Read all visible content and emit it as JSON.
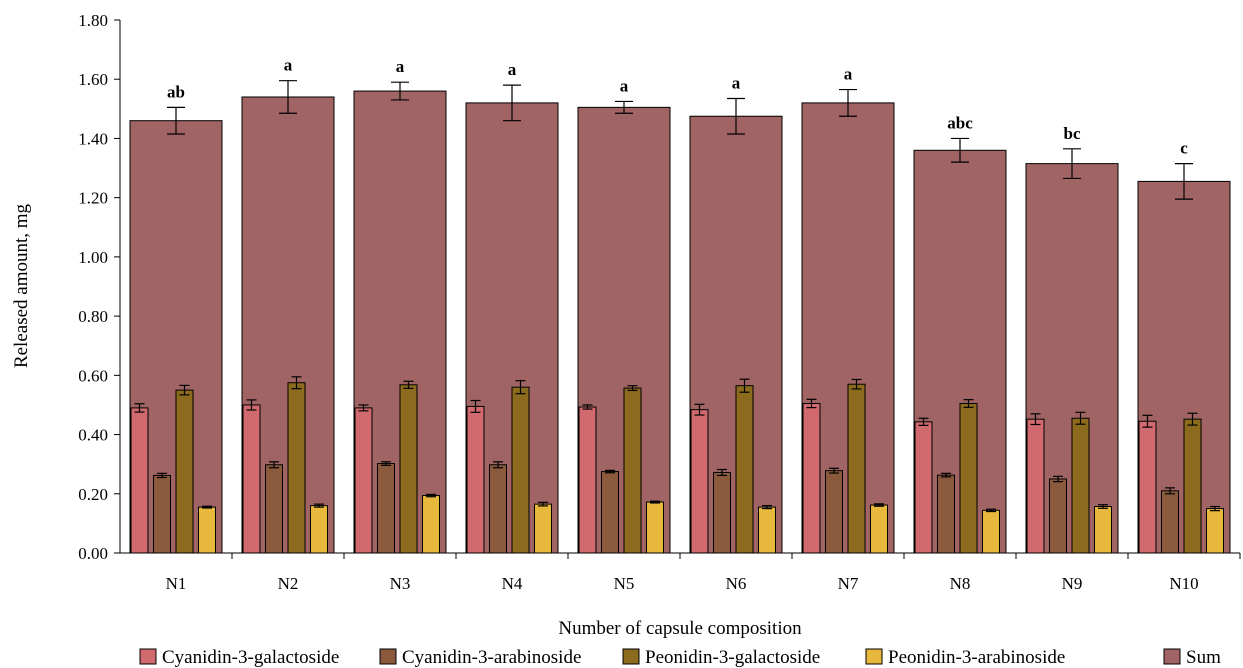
{
  "chart_data": {
    "type": "bar",
    "title": "",
    "xlabel": "Number of capsule composition",
    "ylabel": "Released amount, mg",
    "ylim": [
      0,
      1.8
    ],
    "yticks": [
      "0.00",
      "0.20",
      "0.40",
      "0.60",
      "0.80",
      "1.00",
      "1.20",
      "1.40",
      "1.60",
      "1.80"
    ],
    "grid": false,
    "legend_position": "bottom",
    "categories": [
      "N1",
      "N2",
      "N3",
      "N4",
      "N5",
      "N6",
      "N7",
      "N8",
      "N9",
      "N10"
    ],
    "sum": {
      "name": "Sum",
      "color": "#A06464",
      "values": [
        1.46,
        1.54,
        1.56,
        1.52,
        1.505,
        1.475,
        1.52,
        1.36,
        1.315,
        1.255
      ],
      "errors": [
        0.045,
        0.055,
        0.03,
        0.06,
        0.02,
        0.06,
        0.045,
        0.04,
        0.05,
        0.06
      ],
      "significance": [
        "ab",
        "a",
        "a",
        "a",
        "a",
        "a",
        "a",
        "abc",
        "bc",
        "c"
      ]
    },
    "series": [
      {
        "name": "Cyanidin-3-galactoside",
        "color": "#D16A6E",
        "values": [
          0.49,
          0.5,
          0.49,
          0.495,
          0.493,
          0.484,
          0.505,
          0.443,
          0.452,
          0.445
        ],
        "errors": [
          0.014,
          0.017,
          0.01,
          0.02,
          0.007,
          0.018,
          0.014,
          0.012,
          0.018,
          0.02
        ]
      },
      {
        "name": "Cyanidin-3-arabinoside",
        "color": "#8B5A3C",
        "values": [
          0.262,
          0.298,
          0.302,
          0.298,
          0.275,
          0.272,
          0.278,
          0.263,
          0.25,
          0.21
        ],
        "errors": [
          0.007,
          0.01,
          0.006,
          0.01,
          0.004,
          0.01,
          0.008,
          0.006,
          0.009,
          0.01
        ]
      },
      {
        "name": "Peonidin-3-galactoside",
        "color": "#8C6A1E",
        "values": [
          0.55,
          0.575,
          0.568,
          0.56,
          0.557,
          0.565,
          0.57,
          0.505,
          0.455,
          0.452
        ],
        "errors": [
          0.016,
          0.02,
          0.012,
          0.022,
          0.008,
          0.022,
          0.016,
          0.013,
          0.02,
          0.02
        ]
      },
      {
        "name": "Peonidin-3-arabinoside",
        "color": "#E7B83C",
        "values": [
          0.155,
          0.16,
          0.194,
          0.165,
          0.172,
          0.155,
          0.162,
          0.144,
          0.157,
          0.15
        ],
        "errors": [
          0.003,
          0.005,
          0.004,
          0.006,
          0.003,
          0.005,
          0.004,
          0.004,
          0.006,
          0.007
        ]
      }
    ]
  }
}
